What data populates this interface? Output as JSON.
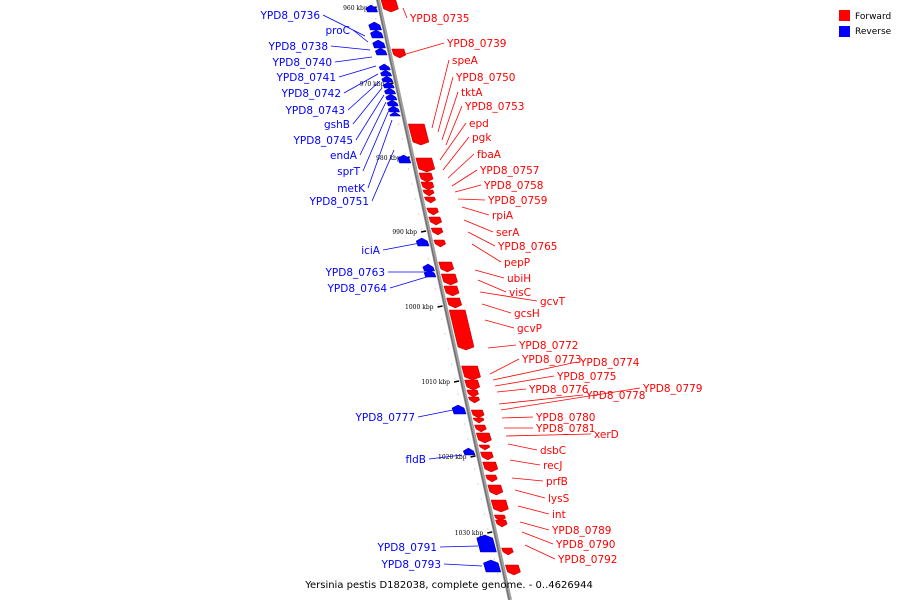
{
  "title": "Yersinia pestis D182038, complete genome. - 0..4626944",
  "legend": [
    {
      "label": "Forward",
      "color": "#ff0000"
    },
    {
      "label": "Reverse",
      "color": "#0000ff"
    }
  ],
  "colors": {
    "forward": "#ff0000",
    "reverse": "#0000ff",
    "backbone": "#808080"
  },
  "ticks": [
    "960 kbp",
    "970 kbp",
    "980 kbp",
    "990 kbp",
    "1000 kbp",
    "1010 kbp",
    "1020 kbp",
    "1030 kbp"
  ],
  "forward_genes": [
    "YPD8_0735",
    "YPD8_0739",
    "speA",
    "YPD8_0750",
    "tktA",
    "YPD8_0753",
    "epd",
    "pgk",
    "fbaA",
    "YPD8_0757",
    "YPD8_0758",
    "YPD8_0759",
    "rpiA",
    "serA",
    "YPD8_0765",
    "pepP",
    "ubiH",
    "visC",
    "gcvT",
    "gcsH",
    "gcvP",
    "YPD8_0772",
    "YPD8_0773",
    "YPD8_0774",
    "YPD8_0775",
    "YPD8_0776",
    "YPD8_0778",
    "YPD8_0779",
    "YPD8_0780",
    "YPD8_0781",
    "xerD",
    "dsbC",
    "recJ",
    "prfB",
    "lysS",
    "int",
    "YPD8_0789",
    "YPD8_0790",
    "YPD8_0792"
  ],
  "reverse_genes": [
    "YPD8_0736",
    "proC",
    "YPD8_0738",
    "YPD8_0740",
    "YPD8_0741",
    "YPD8_0742",
    "YPD8_0743",
    "gshB",
    "YPD8_0745",
    "endA",
    "sprT",
    "metK",
    "YPD8_0751",
    "iciA",
    "YPD8_0763",
    "YPD8_0764",
    "YPD8_0777",
    "fldB",
    "YPD8_0791",
    "YPD8_0793"
  ]
}
